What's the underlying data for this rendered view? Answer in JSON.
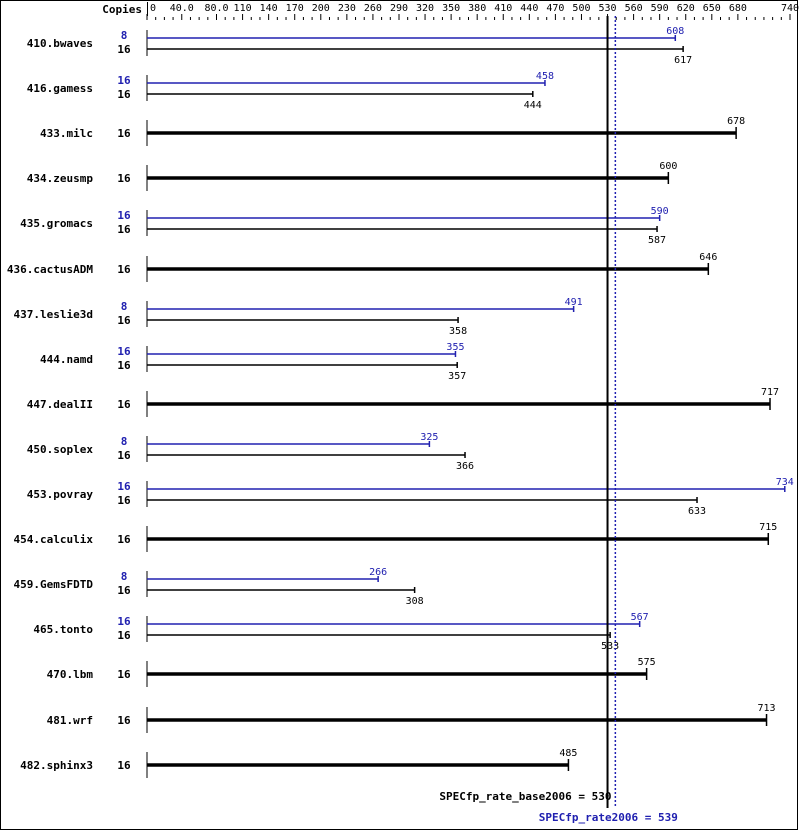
{
  "chart_data": {
    "type": "bar",
    "orientation": "horizontal",
    "copies_header": "Copies",
    "xlim": [
      0,
      740
    ],
    "tick_labels": [
      "0",
      "40.0",
      "80.0",
      "110",
      "140",
      "170",
      "200",
      "230",
      "260",
      "290",
      "320",
      "350",
      "380",
      "410",
      "440",
      "470",
      "500",
      "530",
      "560",
      "590",
      "620",
      "650",
      "680",
      "740"
    ],
    "tick_values": [
      0,
      40,
      80,
      110,
      140,
      170,
      200,
      230,
      260,
      290,
      320,
      350,
      380,
      410,
      440,
      470,
      500,
      530,
      560,
      590,
      620,
      650,
      680,
      740
    ],
    "colors": {
      "base": "#000000",
      "peak": "#2020b0"
    },
    "benchmarks": [
      {
        "name": "410.bwaves",
        "peak_copies": "8",
        "peak": 608,
        "base_copies": "16",
        "base": 617
      },
      {
        "name": "416.gamess",
        "peak_copies": "16",
        "peak": 458,
        "base_copies": "16",
        "base": 444
      },
      {
        "name": "433.milc",
        "base_copies": "16",
        "base": 678
      },
      {
        "name": "434.zeusmp",
        "base_copies": "16",
        "base": 600
      },
      {
        "name": "435.gromacs",
        "peak_copies": "16",
        "peak": 590,
        "base_copies": "16",
        "base": 587
      },
      {
        "name": "436.cactusADM",
        "base_copies": "16",
        "base": 646
      },
      {
        "name": "437.leslie3d",
        "peak_copies": "8",
        "peak": 491,
        "base_copies": "16",
        "base": 358
      },
      {
        "name": "444.namd",
        "peak_copies": "16",
        "peak": 355,
        "base_copies": "16",
        "base": 357
      },
      {
        "name": "447.dealII",
        "base_copies": "16",
        "base": 717
      },
      {
        "name": "450.soplex",
        "peak_copies": "8",
        "peak": 325,
        "base_copies": "16",
        "base": 366
      },
      {
        "name": "453.povray",
        "peak_copies": "16",
        "peak": 734,
        "base_copies": "16",
        "base": 633
      },
      {
        "name": "454.calculix",
        "base_copies": "16",
        "base": 715
      },
      {
        "name": "459.GemsFDTD",
        "peak_copies": "8",
        "peak": 266,
        "base_copies": "16",
        "base": 308
      },
      {
        "name": "465.tonto",
        "peak_copies": "16",
        "peak": 567,
        "base_copies": "16",
        "base": 533
      },
      {
        "name": "470.lbm",
        "base_copies": "16",
        "base": 575
      },
      {
        "name": "481.wrf",
        "base_copies": "16",
        "base": 713
      },
      {
        "name": "482.sphinx3",
        "base_copies": "16",
        "base": 485
      }
    ],
    "base_metric": {
      "label": "SPECfp_rate_base2006 = 530",
      "value": 530
    },
    "peak_metric": {
      "label": "SPECfp_rate2006 = 539",
      "value": 539
    }
  }
}
